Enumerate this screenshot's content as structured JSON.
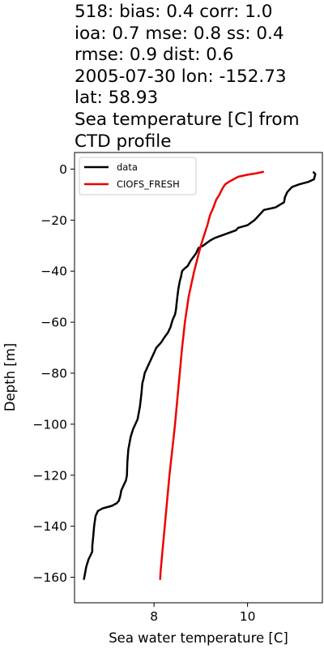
{
  "title_lines": [
    "518: bias: 0.4  corr: 1.0",
    "ioa: 0.7  mse: 0.8  ss: 0.4",
    "rmse: 0.9  dist: 0.6",
    "2005-07-30 lon: -152.73",
    "lat: 58.93",
    "Sea temperature [C] from",
    "CTD profile"
  ],
  "chart_data": {
    "type": "line",
    "xlabel": "Sea water temperature [C]",
    "ylabel": "Depth [m]",
    "xlim": [
      6.3,
      11.6
    ],
    "ylim": [
      -170,
      6.5
    ],
    "x_ticks": [
      8,
      10
    ],
    "y_ticks": [
      0,
      -20,
      -40,
      -60,
      -80,
      -100,
      -120,
      -140,
      -160
    ],
    "x_tick_labels": [
      "8",
      "10"
    ],
    "y_tick_labels": [
      "0",
      "−20",
      "−40",
      "−60",
      "−80",
      "−100",
      "−120",
      "−140",
      "−160"
    ],
    "grid": false,
    "legend_position": "top-left",
    "series": [
      {
        "name": "data",
        "color": "#000000",
        "points": [
          [
            11.4,
            -1
          ],
          [
            11.45,
            -2
          ],
          [
            11.42,
            -4
          ],
          [
            11.3,
            -5
          ],
          [
            11.1,
            -6
          ],
          [
            10.95,
            -7
          ],
          [
            10.85,
            -9
          ],
          [
            10.8,
            -11
          ],
          [
            10.78,
            -13
          ],
          [
            10.6,
            -15
          ],
          [
            10.35,
            -16
          ],
          [
            10.25,
            -18
          ],
          [
            10.15,
            -20
          ],
          [
            10.0,
            -22
          ],
          [
            9.8,
            -23
          ],
          [
            9.75,
            -24
          ],
          [
            9.6,
            -25
          ],
          [
            9.45,
            -26
          ],
          [
            9.3,
            -27
          ],
          [
            9.2,
            -28
          ],
          [
            9.05,
            -30
          ],
          [
            8.95,
            -31
          ],
          [
            8.9,
            -33
          ],
          [
            8.82,
            -35
          ],
          [
            8.78,
            -36
          ],
          [
            8.72,
            -38
          ],
          [
            8.65,
            -39
          ],
          [
            8.6,
            -40
          ],
          [
            8.58,
            -42
          ],
          [
            8.55,
            -44
          ],
          [
            8.52,
            -47
          ],
          [
            8.5,
            -50
          ],
          [
            8.48,
            -53
          ],
          [
            8.47,
            -55
          ],
          [
            8.45,
            -57
          ],
          [
            8.4,
            -59
          ],
          [
            8.35,
            -62
          ],
          [
            8.3,
            -64
          ],
          [
            8.22,
            -66
          ],
          [
            8.15,
            -68
          ],
          [
            8.05,
            -70
          ],
          [
            8.0,
            -72
          ],
          [
            7.95,
            -74
          ],
          [
            7.9,
            -76
          ],
          [
            7.85,
            -78
          ],
          [
            7.8,
            -80
          ],
          [
            7.78,
            -82
          ],
          [
            7.75,
            -84
          ],
          [
            7.73,
            -88
          ],
          [
            7.7,
            -93
          ],
          [
            7.65,
            -98
          ],
          [
            7.6,
            -100
          ],
          [
            7.55,
            -102
          ],
          [
            7.5,
            -105
          ],
          [
            7.45,
            -110
          ],
          [
            7.43,
            -115
          ],
          [
            7.42,
            -120
          ],
          [
            7.4,
            -122
          ],
          [
            7.35,
            -124
          ],
          [
            7.3,
            -126
          ],
          [
            7.28,
            -128
          ],
          [
            7.25,
            -130
          ],
          [
            7.2,
            -131
          ],
          [
            7.1,
            -132
          ],
          [
            6.9,
            -133
          ],
          [
            6.8,
            -134
          ],
          [
            6.75,
            -136
          ],
          [
            6.72,
            -140
          ],
          [
            6.7,
            -144
          ],
          [
            6.68,
            -148
          ],
          [
            6.68,
            -150
          ],
          [
            6.6,
            -153
          ],
          [
            6.55,
            -156
          ],
          [
            6.52,
            -159
          ],
          [
            6.5,
            -161
          ]
        ]
      },
      {
        "name": "CIOFS_FRESH",
        "color": "#ee0000",
        "points": [
          [
            10.35,
            -1
          ],
          [
            10.2,
            -1.6
          ],
          [
            10.0,
            -2.2
          ],
          [
            9.8,
            -3
          ],
          [
            9.7,
            -4
          ],
          [
            9.6,
            -5
          ],
          [
            9.52,
            -6
          ],
          [
            9.45,
            -8
          ],
          [
            9.4,
            -10
          ],
          [
            9.33,
            -12
          ],
          [
            9.27,
            -15
          ],
          [
            9.2,
            -18
          ],
          [
            9.14,
            -22
          ],
          [
            9.07,
            -26
          ],
          [
            9.0,
            -30
          ],
          [
            8.93,
            -35
          ],
          [
            8.86,
            -40
          ],
          [
            8.8,
            -45
          ],
          [
            8.74,
            -50
          ],
          [
            8.7,
            -55
          ],
          [
            8.66,
            -60
          ],
          [
            8.6,
            -70
          ],
          [
            8.55,
            -80
          ],
          [
            8.5,
            -90
          ],
          [
            8.45,
            -100
          ],
          [
            8.39,
            -110
          ],
          [
            8.33,
            -120
          ],
          [
            8.28,
            -130
          ],
          [
            8.23,
            -140
          ],
          [
            8.18,
            -150
          ],
          [
            8.14,
            -158
          ],
          [
            8.13,
            -161
          ]
        ]
      }
    ]
  }
}
